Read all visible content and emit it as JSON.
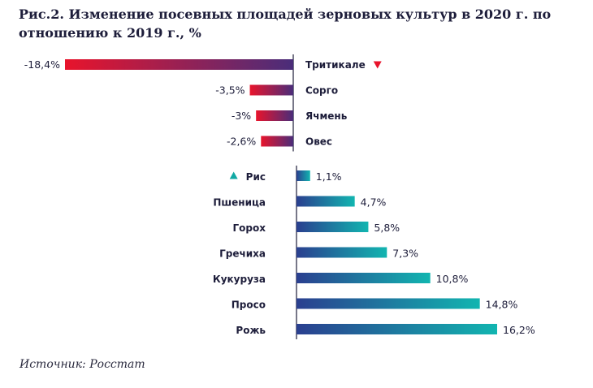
{
  "title": "Рис.2. Изменение посевных площадей зерновых культур в 2020 г. по отношению к 2019 г., %",
  "source": "Источник: Росстат",
  "colors": {
    "negative_start": "#e8142c",
    "negative_end": "#4a2d7a",
    "positive_start": "#2a3f8f",
    "positive_end": "#12b5b0",
    "axis": "#1d1d3a",
    "down_marker": "#e8142c",
    "up_marker": "#12a9a4"
  },
  "chart_data": {
    "type": "bar",
    "orientation": "horizontal",
    "unit": "%",
    "negative": [
      {
        "category": "Тритикале",
        "value": -18.4,
        "label": "-18,4%",
        "marker": "down-triangle"
      },
      {
        "category": "Сорго",
        "value": -3.5,
        "label": "-3,5%"
      },
      {
        "category": "Ячмень",
        "value": -3,
        "label": "-3%"
      },
      {
        "category": "Овес",
        "value": -2.6,
        "label": "-2,6%"
      }
    ],
    "positive": [
      {
        "category": "Рис",
        "value": 1.1,
        "label": "1,1%",
        "marker": "up-triangle"
      },
      {
        "category": "Пшеница",
        "value": 4.7,
        "label": "4,7%"
      },
      {
        "category": "Горох",
        "value": 5.8,
        "label": "5,8%"
      },
      {
        "category": "Гречиха",
        "value": 7.3,
        "label": "7,3%"
      },
      {
        "category": "Кукуруза",
        "value": 10.8,
        "label": "10,8%"
      },
      {
        "category": "Просо",
        "value": 14.8,
        "label": "14,8%"
      },
      {
        "category": "Рожь",
        "value": 16.2,
        "label": "16,2%"
      }
    ]
  }
}
